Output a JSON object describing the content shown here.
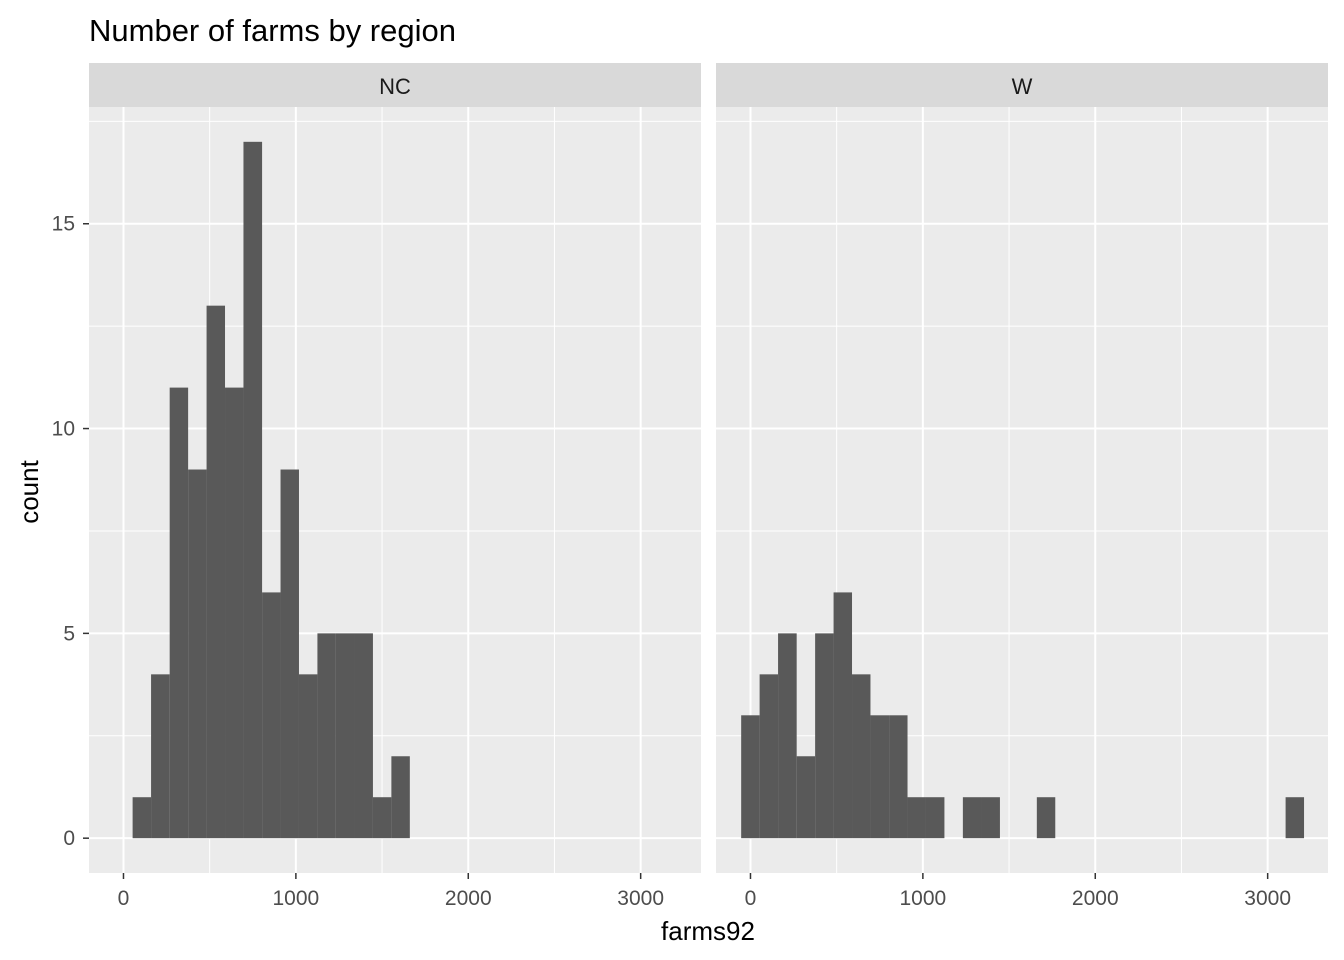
{
  "chart_data": {
    "type": "bar",
    "title": "Number of farms by region",
    "xlabel": "farms92",
    "ylabel": "count",
    "xlim": [
      -200,
      3350
    ],
    "ylim": [
      -0.85,
      17.85
    ],
    "x_ticks": [
      0,
      1000,
      2000,
      3000
    ],
    "x_tick_labels": [
      "0",
      "1000",
      "2000",
      "3000"
    ],
    "y_ticks": [
      0,
      5,
      10,
      15
    ],
    "y_tick_labels": [
      "0",
      "5",
      "10",
      "15"
    ],
    "grid": true,
    "panel_background": "#ebebeb",
    "strip_background": "#d9d9d9",
    "bar_color": "#595959",
    "bin_width": 107,
    "panels": [
      {
        "name": "NC",
        "bins": [
          {
            "x0": 53,
            "x1": 160,
            "count": 1
          },
          {
            "x0": 160,
            "x1": 268,
            "count": 4
          },
          {
            "x0": 268,
            "x1": 375,
            "count": 11
          },
          {
            "x0": 375,
            "x1": 482,
            "count": 9
          },
          {
            "x0": 482,
            "x1": 589,
            "count": 13
          },
          {
            "x0": 589,
            "x1": 696,
            "count": 11
          },
          {
            "x0": 696,
            "x1": 804,
            "count": 17
          },
          {
            "x0": 804,
            "x1": 911,
            "count": 6
          },
          {
            "x0": 911,
            "x1": 1018,
            "count": 9
          },
          {
            "x0": 1018,
            "x1": 1125,
            "count": 4
          },
          {
            "x0": 1125,
            "x1": 1232,
            "count": 5
          },
          {
            "x0": 1232,
            "x1": 1340,
            "count": 5
          },
          {
            "x0": 1340,
            "x1": 1447,
            "count": 5
          },
          {
            "x0": 1447,
            "x1": 1554,
            "count": 1
          },
          {
            "x0": 1554,
            "x1": 1661,
            "count": 2
          }
        ]
      },
      {
        "name": "W",
        "bins": [
          {
            "x0": -54,
            "x1": 53,
            "count": 3
          },
          {
            "x0": 53,
            "x1": 160,
            "count": 4
          },
          {
            "x0": 160,
            "x1": 268,
            "count": 5
          },
          {
            "x0": 268,
            "x1": 375,
            "count": 2
          },
          {
            "x0": 375,
            "x1": 482,
            "count": 5
          },
          {
            "x0": 482,
            "x1": 589,
            "count": 6
          },
          {
            "x0": 589,
            "x1": 696,
            "count": 4
          },
          {
            "x0": 696,
            "x1": 804,
            "count": 3
          },
          {
            "x0": 804,
            "x1": 911,
            "count": 3
          },
          {
            "x0": 911,
            "x1": 1018,
            "count": 1
          },
          {
            "x0": 1018,
            "x1": 1125,
            "count": 1
          },
          {
            "x0": 1232,
            "x1": 1340,
            "count": 1
          },
          {
            "x0": 1340,
            "x1": 1447,
            "count": 1
          },
          {
            "x0": 1661,
            "x1": 1768,
            "count": 1
          },
          {
            "x0": 3104,
            "x1": 3211,
            "count": 1
          }
        ]
      }
    ]
  }
}
